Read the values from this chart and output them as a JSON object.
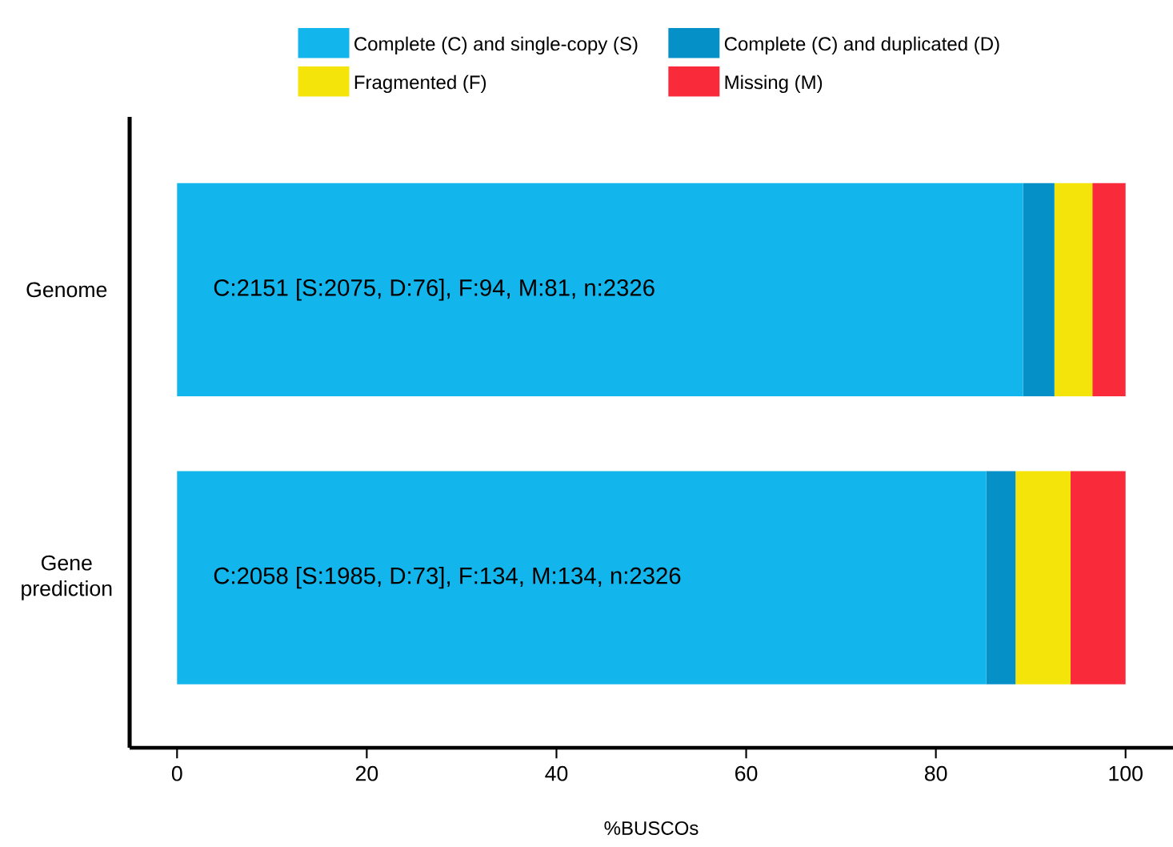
{
  "chart_data": {
    "type": "bar",
    "orientation": "horizontal",
    "stacked": true,
    "xlabel": "%BUSCOs",
    "categories": [
      "Genome",
      "Gene prediction"
    ],
    "series": [
      {
        "name": "Complete (C) and single-copy (S)",
        "color": "#13b6ec",
        "values": [
          89.2,
          85.3
        ]
      },
      {
        "name": "Complete (C) and duplicated (D)",
        "color": "#0690c8",
        "values": [
          3.3,
          3.1
        ]
      },
      {
        "name": "Fragmented (F)",
        "color": "#f4e40a",
        "values": [
          4.0,
          5.8
        ]
      },
      {
        "name": "Missing (M)",
        "color": "#f92a3a",
        "values": [
          3.5,
          5.8
        ]
      }
    ],
    "xlim": [
      -5,
      105
    ],
    "xticks": [
      0,
      20,
      40,
      60,
      80,
      100
    ],
    "legend": "top",
    "annotations": [
      "C:2151 [S:2075, D:76], F:94, M:81, n:2326",
      "C:2058 [S:1985, D:73], F:134, M:134, n:2326"
    ]
  }
}
